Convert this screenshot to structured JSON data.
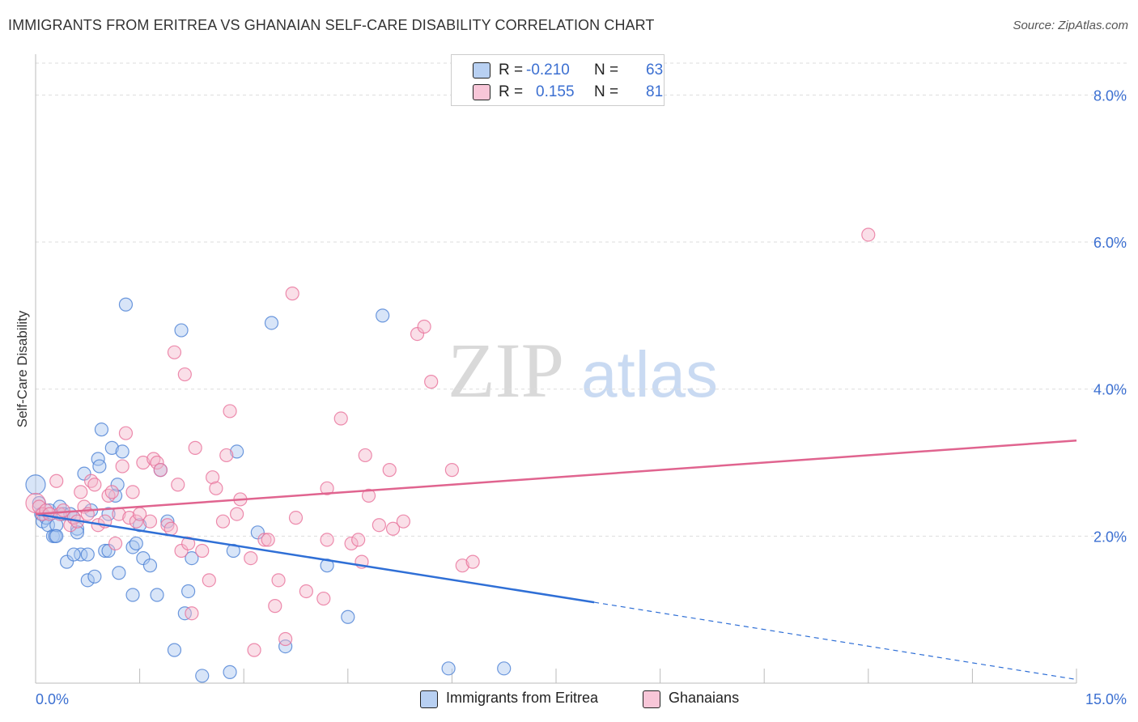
{
  "title": "IMMIGRANTS FROM ERITREA VS GHANAIAN SELF-CARE DISABILITY CORRELATION CHART",
  "source": "Source: ZipAtlas.com",
  "watermark": {
    "zip": "ZIP",
    "atlas": "atlas"
  },
  "legend": {
    "rows": [
      {
        "r_label": "R =",
        "r_value": "-0.210",
        "n_label": "N =",
        "n_value": "63"
      },
      {
        "r_label": "R =",
        "r_value": "0.155",
        "n_label": "N =",
        "n_value": "81"
      }
    ]
  },
  "bottom_legend": {
    "blue": "Immigrants from Eritrea",
    "pink": "Ghanaians"
  },
  "chart_data": {
    "type": "scatter",
    "title": "IMMIGRANTS FROM ERITREA VS GHANAIAN SELF-CARE DISABILITY CORRELATION CHART",
    "xlabel": "",
    "ylabel": "Self-Care Disability",
    "xlim": [
      0,
      15
    ],
    "ylim": [
      0,
      8.5
    ],
    "x_tick_labels": [
      "0.0%",
      "15.0%"
    ],
    "y_ticks": [
      2,
      4,
      6,
      8
    ],
    "y_tick_labels": [
      "2.0%",
      "4.0%",
      "6.0%",
      "8.0%"
    ],
    "grid": true,
    "colors": {
      "blue": "#4a7fd4",
      "pink": "#e8709a",
      "blue_fill": "#a9c6ef",
      "pink_fill": "#f5b8cd",
      "tick_text": "#3b6fd1"
    },
    "series": [
      {
        "name": "Immigrants from Eritrea",
        "color": "#4a7fd4",
        "points": [
          [
            0.0,
            2.7
          ],
          [
            0.05,
            2.45
          ],
          [
            0.08,
            2.3
          ],
          [
            0.1,
            2.2
          ],
          [
            0.15,
            2.25
          ],
          [
            0.18,
            2.15
          ],
          [
            0.2,
            2.35
          ],
          [
            0.25,
            2.0
          ],
          [
            0.28,
            2.0
          ],
          [
            0.3,
            2.15
          ],
          [
            0.35,
            2.4
          ],
          [
            0.4,
            2.3
          ],
          [
            0.45,
            1.65
          ],
          [
            0.5,
            2.3
          ],
          [
            0.55,
            2.25
          ],
          [
            0.6,
            2.1
          ],
          [
            0.6,
            2.05
          ],
          [
            0.65,
            1.75
          ],
          [
            0.7,
            2.85
          ],
          [
            0.75,
            1.75
          ],
          [
            0.75,
            1.4
          ],
          [
            0.8,
            2.35
          ],
          [
            0.85,
            1.45
          ],
          [
            0.9,
            3.05
          ],
          [
            0.92,
            2.95
          ],
          [
            0.95,
            3.45
          ],
          [
            1.0,
            1.8
          ],
          [
            1.05,
            2.3
          ],
          [
            1.05,
            1.8
          ],
          [
            1.1,
            3.2
          ],
          [
            1.15,
            2.55
          ],
          [
            1.18,
            2.7
          ],
          [
            1.2,
            1.5
          ],
          [
            1.25,
            3.15
          ],
          [
            1.3,
            5.15
          ],
          [
            1.4,
            1.85
          ],
          [
            1.45,
            1.9
          ],
          [
            1.5,
            2.15
          ],
          [
            1.55,
            1.7
          ],
          [
            1.65,
            1.6
          ],
          [
            1.75,
            1.2
          ],
          [
            1.8,
            2.9
          ],
          [
            1.9,
            2.2
          ],
          [
            2.0,
            0.45
          ],
          [
            2.1,
            4.8
          ],
          [
            2.15,
            0.95
          ],
          [
            2.2,
            1.25
          ],
          [
            2.25,
            1.7
          ],
          [
            2.4,
            0.1
          ],
          [
            2.8,
            0.15
          ],
          [
            2.85,
            1.8
          ],
          [
            2.9,
            3.15
          ],
          [
            3.2,
            2.05
          ],
          [
            3.4,
            4.9
          ],
          [
            3.6,
            0.5
          ],
          [
            4.2,
            1.6
          ],
          [
            4.5,
            0.9
          ],
          [
            5.0,
            5.0
          ],
          [
            5.95,
            0.2
          ],
          [
            6.75,
            0.2
          ],
          [
            0.3,
            2.0
          ],
          [
            0.55,
            1.75
          ],
          [
            1.4,
            1.2
          ]
        ]
      },
      {
        "name": "Ghanaians",
        "color": "#e8709a",
        "points": [
          [
            0.0,
            2.45
          ],
          [
            0.05,
            2.4
          ],
          [
            0.1,
            2.3
          ],
          [
            0.15,
            2.35
          ],
          [
            0.2,
            2.3
          ],
          [
            0.3,
            2.75
          ],
          [
            0.35,
            2.3
          ],
          [
            0.4,
            2.35
          ],
          [
            0.5,
            2.15
          ],
          [
            0.55,
            2.25
          ],
          [
            0.6,
            2.2
          ],
          [
            0.65,
            2.6
          ],
          [
            0.7,
            2.4
          ],
          [
            0.75,
            2.3
          ],
          [
            0.8,
            2.75
          ],
          [
            0.85,
            2.7
          ],
          [
            0.9,
            2.15
          ],
          [
            1.0,
            2.2
          ],
          [
            1.05,
            2.55
          ],
          [
            1.1,
            2.6
          ],
          [
            1.15,
            1.9
          ],
          [
            1.2,
            2.3
          ],
          [
            1.25,
            2.95
          ],
          [
            1.3,
            3.4
          ],
          [
            1.35,
            2.25
          ],
          [
            1.4,
            2.6
          ],
          [
            1.45,
            2.2
          ],
          [
            1.5,
            2.3
          ],
          [
            1.55,
            3.0
          ],
          [
            1.65,
            2.2
          ],
          [
            1.7,
            3.05
          ],
          [
            1.75,
            3.0
          ],
          [
            1.8,
            2.9
          ],
          [
            1.9,
            2.15
          ],
          [
            1.95,
            2.1
          ],
          [
            2.0,
            4.5
          ],
          [
            2.05,
            2.7
          ],
          [
            2.1,
            1.8
          ],
          [
            2.15,
            4.2
          ],
          [
            2.2,
            1.9
          ],
          [
            2.25,
            0.95
          ],
          [
            2.3,
            3.2
          ],
          [
            2.4,
            1.8
          ],
          [
            2.5,
            1.4
          ],
          [
            2.55,
            2.8
          ],
          [
            2.6,
            2.65
          ],
          [
            2.7,
            2.2
          ],
          [
            2.75,
            3.1
          ],
          [
            2.8,
            3.7
          ],
          [
            2.9,
            2.3
          ],
          [
            2.95,
            2.5
          ],
          [
            3.1,
            1.7
          ],
          [
            3.15,
            0.45
          ],
          [
            3.3,
            1.95
          ],
          [
            3.35,
            1.95
          ],
          [
            3.45,
            1.05
          ],
          [
            3.5,
            1.4
          ],
          [
            3.6,
            0.6
          ],
          [
            3.7,
            5.3
          ],
          [
            3.75,
            2.25
          ],
          [
            3.9,
            1.25
          ],
          [
            4.15,
            1.15
          ],
          [
            4.2,
            2.65
          ],
          [
            4.2,
            1.95
          ],
          [
            4.4,
            3.6
          ],
          [
            4.55,
            1.9
          ],
          [
            4.65,
            1.95
          ],
          [
            4.7,
            1.65
          ],
          [
            4.75,
            3.1
          ],
          [
            4.8,
            2.55
          ],
          [
            4.95,
            2.15
          ],
          [
            5.1,
            2.9
          ],
          [
            5.15,
            2.1
          ],
          [
            5.3,
            2.2
          ],
          [
            5.5,
            4.75
          ],
          [
            5.6,
            4.85
          ],
          [
            5.7,
            4.1
          ],
          [
            6.0,
            2.9
          ],
          [
            6.15,
            1.6
          ],
          [
            6.3,
            1.65
          ],
          [
            12.0,
            6.1
          ]
        ]
      }
    ],
    "trend_lines": [
      {
        "series": "Immigrants from Eritrea",
        "x1": 0.0,
        "y1": 2.3,
        "x2": 8.05,
        "y2": 1.1,
        "dashed_to": [
          15.0,
          0.05
        ]
      },
      {
        "series": "Ghanaians",
        "x1": 0.0,
        "y1": 2.3,
        "x2": 15.0,
        "y2": 3.3
      }
    ]
  }
}
